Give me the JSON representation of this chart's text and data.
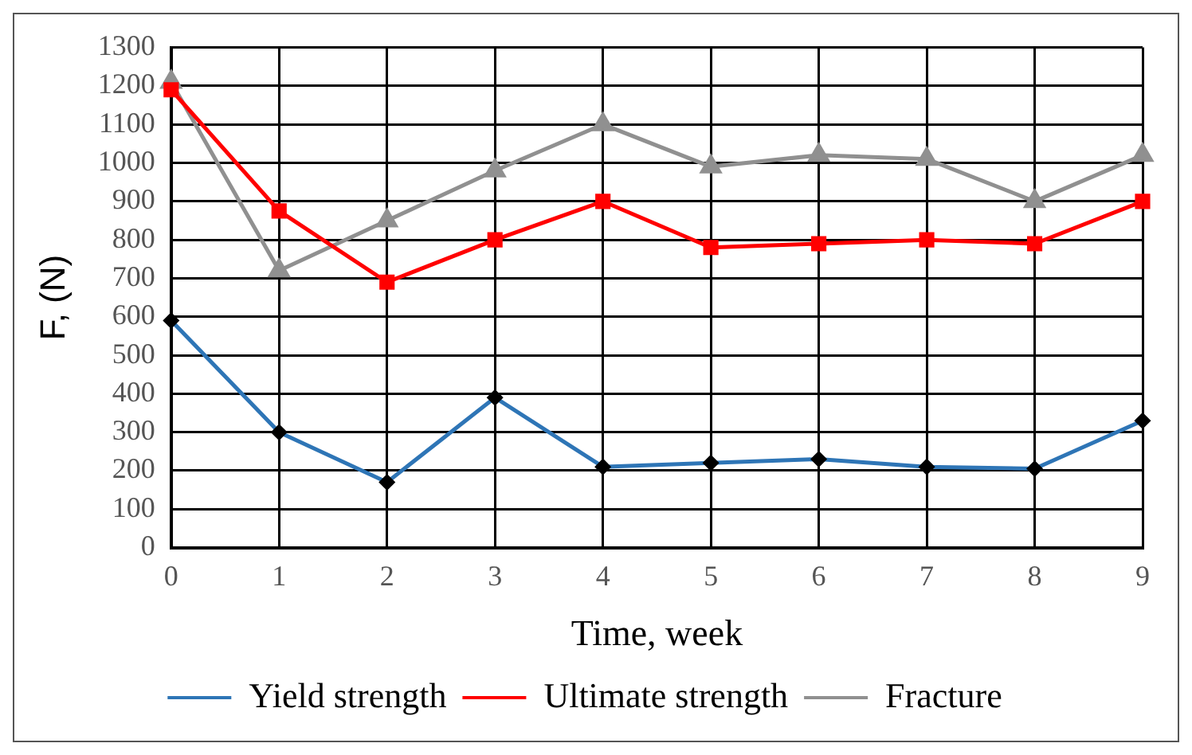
{
  "chart_data": {
    "type": "line",
    "xlabel": "Time, week",
    "ylabel": "F, (N)",
    "categories": [
      "0",
      "1",
      "2",
      "3",
      "4",
      "5",
      "6",
      "7",
      "8",
      "9"
    ],
    "series": [
      {
        "name": "Yield strength",
        "color": "#2e75b6",
        "marker": "diamond",
        "values": [
          590,
          300,
          170,
          390,
          210,
          220,
          230,
          210,
          205,
          330
        ]
      },
      {
        "name": "Ultimate strength",
        "color": "#ff0000",
        "marker": "square",
        "values": [
          1190,
          875,
          690,
          800,
          900,
          780,
          790,
          800,
          790,
          900
        ]
      },
      {
        "name": "Fracture",
        "color": "#909090",
        "marker": "triangle",
        "values": [
          1210,
          720,
          850,
          980,
          1100,
          990,
          1020,
          1010,
          900,
          1020
        ]
      }
    ],
    "ylim": [
      0,
      1300
    ],
    "yticks": [
      0,
      100,
      200,
      300,
      400,
      500,
      600,
      700,
      800,
      900,
      1000,
      1100,
      1200,
      1300
    ],
    "grid": true,
    "legend": "bottom",
    "line_style": "solid"
  }
}
